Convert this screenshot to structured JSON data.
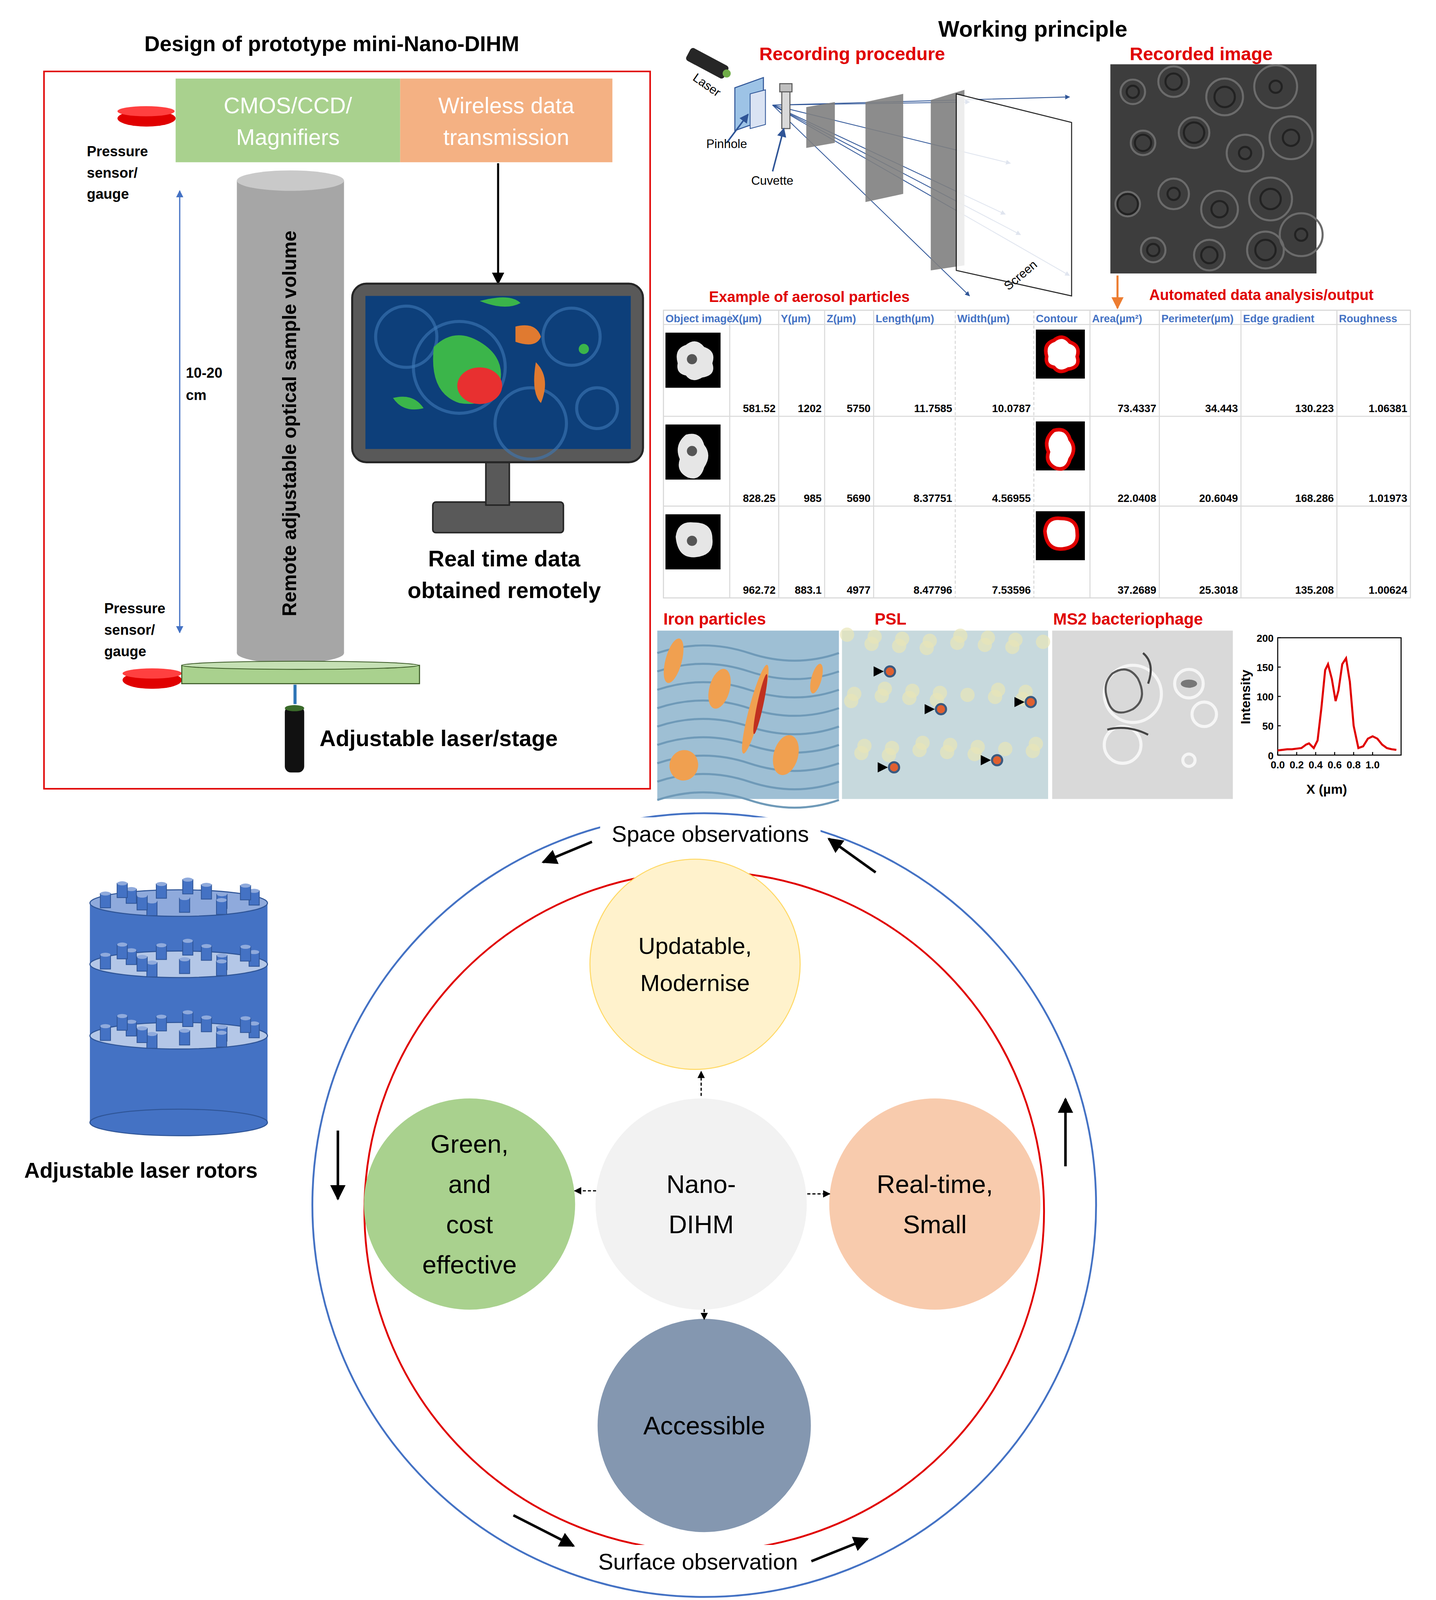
{
  "left_panel": {
    "title": "Design of prototype mini-Nano-DIHM",
    "camera": [
      "CMOS/CCD/",
      "Magnifiers"
    ],
    "transmission": [
      "Wireless data",
      "transmission"
    ],
    "pressure_sensor_top": [
      "Pressure",
      "sensor/",
      "gauge"
    ],
    "sample_volume": "Remote adjustable optical sample volume",
    "distance": [
      "10-20",
      "cm"
    ],
    "pressure_sensor_bottom": [
      "Pressure",
      "sensor/",
      "gauge"
    ],
    "laser_stage": "Adjustable laser/stage",
    "monitor_caption": [
      "Real time data",
      "obtained remotely"
    ]
  },
  "working_principle": {
    "title": "Working principle",
    "recording_procedure": "Recording procedure",
    "recorded_image": "Recorded image",
    "laser": "Laser",
    "pinhole": "Pinhole",
    "cuvette": "Cuvette",
    "screen": "Screen",
    "example_title": "Example of aerosol particles",
    "analysis_title": "Automated data analysis/output"
  },
  "table": {
    "headers": [
      "Object image",
      "X(µm)",
      "Y(µm)",
      "Z(µm)",
      "Length(µm)",
      "Width(µm)",
      "Contour",
      "Area(µm²)",
      "Perimeter(µm)",
      "Edge gradient",
      "Roughness"
    ],
    "rows": [
      [
        581.52,
        1202,
        5750,
        11.7585,
        10.0787,
        73.4337,
        34.443,
        130.223,
        1.06381
      ],
      [
        828.25,
        985,
        5690,
        8.37751,
        4.56955,
        22.0408,
        20.6049,
        168.286,
        1.01973
      ],
      [
        962.72,
        883.1,
        4977,
        8.47796,
        7.53596,
        37.2689,
        25.3018,
        135.208,
        1.00624
      ]
    ]
  },
  "images": [
    {
      "label": "Iron particles"
    },
    {
      "label": "PSL"
    },
    {
      "label": "MS2 bacteriophage"
    }
  ],
  "chart_data": {
    "type": "line",
    "x": [
      0,
      0.05,
      0.1,
      0.15,
      0.2,
      0.25,
      0.3,
      0.33,
      0.38,
      0.42,
      0.46,
      0.5,
      0.53,
      0.57,
      0.61,
      0.64,
      0.68,
      0.72,
      0.76,
      0.8,
      0.85,
      0.9,
      0.95,
      1.0,
      1.05,
      1.1,
      1.15,
      1.2,
      1.25
    ],
    "values": [
      8,
      9,
      10,
      10,
      11,
      12,
      18,
      20,
      12,
      25,
      80,
      145,
      155,
      130,
      92,
      110,
      155,
      165,
      125,
      50,
      12,
      15,
      28,
      32,
      28,
      18,
      12,
      10,
      9
    ],
    "color": "#e00000",
    "xlim": [
      0,
      1.3
    ],
    "ylim": [
      0,
      200
    ],
    "xticks": [
      {
        "value": 0,
        "label": "0.0"
      },
      {
        "value": 0.2,
        "label": "0.2"
      },
      {
        "value": 0.4,
        "label": "0.4"
      },
      {
        "value": 0.6,
        "label": "0.6"
      },
      {
        "value": 0.8,
        "label": "0.8"
      },
      {
        "value": 1,
        "label": "1.0"
      }
    ],
    "yticks": [
      0,
      50,
      100,
      150,
      200
    ],
    "xlabel": "X (µm)",
    "ylabel": "Intensity"
  },
  "concept": {
    "outer_top": "Space observations",
    "outer_bottom": "Surface observation",
    "center": [
      "Nano-",
      "DIHM"
    ],
    "top": [
      "Updatable,",
      "Modernise"
    ],
    "left": [
      "Green,",
      "and",
      "cost",
      "effective"
    ],
    "right": [
      "Real-time,",
      "Small"
    ],
    "bottom": [
      "Accessible"
    ],
    "rotors": "Adjustable laser rotors"
  }
}
